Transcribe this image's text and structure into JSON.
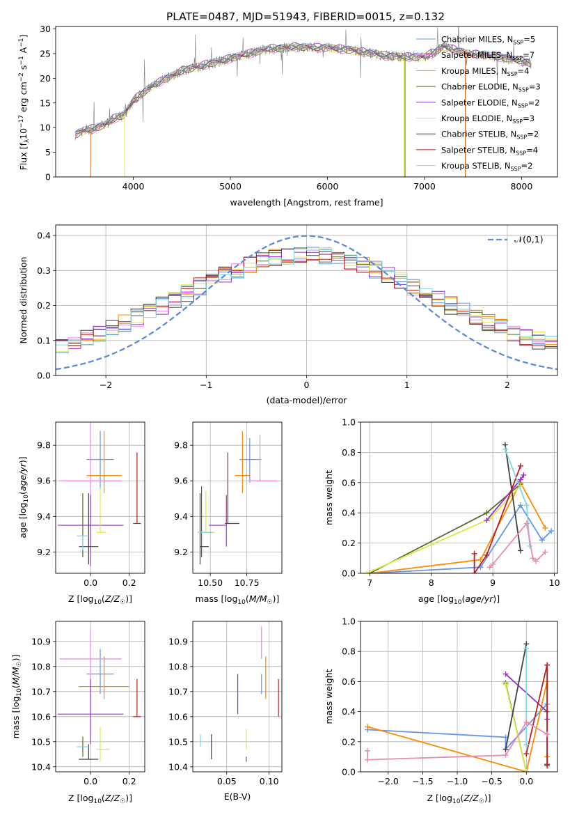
{
  "figure": {
    "title": "PLATE=0487, MJD=51943, FIBERID=0015, z=0.132"
  },
  "chart_data": [
    {
      "id": "spectrum",
      "type": "line",
      "xlabel": "wavelength [Angstrom, rest frame]",
      "ylabel": "Flux [f_λ10^-17 erg cm^-2 s^-1 A^-1]",
      "xlim": [
        3200,
        8370
      ],
      "ylim": [
        0,
        30.5
      ],
      "xticks": [
        4000,
        5000,
        6000,
        7000,
        8000
      ],
      "yticks": [
        0,
        5,
        10,
        15,
        20,
        25,
        30
      ],
      "grid": false,
      "legend": "top-right",
      "spectrum_points": {
        "x": [
          3400,
          3500,
          3600,
          3700,
          3800,
          3900,
          4000,
          4100,
          4200,
          4300,
          4400,
          4500,
          4600,
          4700,
          4800,
          4900,
          5000,
          5100,
          5200,
          5300,
          5400,
          5500,
          5600,
          5700,
          5800,
          5900,
          6000,
          6100,
          6200,
          6300,
          6400,
          6500,
          6600,
          6700,
          6800,
          6900,
          7000,
          7100,
          7200,
          7300,
          7400,
          7500,
          7600,
          7700,
          7800,
          7900,
          8000,
          8100
        ],
        "y": [
          8.5,
          9.5,
          9.8,
          10.5,
          11.8,
          12.5,
          15.5,
          17,
          18.5,
          19.5,
          20.5,
          21.5,
          22,
          22.5,
          23,
          23.5,
          24,
          24.5,
          25,
          25.5,
          26,
          26,
          26.3,
          26.3,
          26.3,
          26.2,
          26.2,
          26,
          25.8,
          25.5,
          25.2,
          25,
          24.5,
          24.5,
          24.3,
          24.3,
          24.4,
          25.2,
          26.5,
          25.8,
          25.2,
          24.8,
          24.8,
          24.5,
          24.2,
          23.8,
          23.5,
          23
        ]
      },
      "series": [
        {
          "name": "Chabrier MILES, N_SSP=5",
          "color": "#6495ed"
        },
        {
          "name": "Salpeter MILES, N_SSP=7",
          "color": "#ee82ee"
        },
        {
          "name": "Kroupa MILES, N_SSP=4",
          "color": "#ff8c00"
        },
        {
          "name": "Chabrier ELODIE, N_SSP=3",
          "color": "#556b2f"
        },
        {
          "name": "Salpeter ELODIE, N_SSP=2",
          "color": "#9932cc"
        },
        {
          "name": "Kroupa ELODIE, N_SSP=3",
          "color": "#dfe842"
        },
        {
          "name": "Chabrier STELIB, N_SSP=2",
          "color": "#404040"
        },
        {
          "name": "Salpeter STELIB, N_SSP=4",
          "color": "#b22222"
        },
        {
          "name": "Kroupa STELIB, N_SSP=2",
          "color": "#7fd8e8"
        }
      ]
    },
    {
      "id": "residuals",
      "type": "histogram",
      "xlabel": "(data-model)/error",
      "ylabel": "Normed distribution",
      "xlim": [
        -2.5,
        2.5
      ],
      "ylim": [
        0,
        0.43
      ],
      "xticks": [
        -2,
        -1,
        0,
        1,
        2
      ],
      "yticks": [
        0.0,
        0.1,
        0.2,
        0.3,
        0.4
      ],
      "grid": true,
      "legend": "top-right",
      "gauss_label": "𝒩(0,1)",
      "gauss_color": "#5b8bd9",
      "hist_colors": [
        "#6495ed",
        "#ee82ee",
        "#ff8c00",
        "#556b2f",
        "#9932cc",
        "#dfe842",
        "#404040",
        "#b22222",
        "#7fd8e8"
      ]
    },
    {
      "id": "age-vs-z",
      "type": "errorbar",
      "xlabel": "Z [log10(Z/Z☉)]",
      "ylabel": "age [log10(age/yr)]",
      "xlim": [
        -0.18,
        0.28
      ],
      "ylim": [
        9.08,
        9.93
      ],
      "xticks": [
        0.0,
        0.2
      ],
      "yticks": [
        9.2,
        9.4,
        9.6,
        9.8
      ],
      "grid": true,
      "points": [
        {
          "x": 0.05,
          "xerr": [
            0.07,
            0.07
          ],
          "y": 9.72,
          "yerr": [
            0.16,
            0.16
          ],
          "color": "#6495ed"
        },
        {
          "x": 0.0,
          "xerr": [
            0.16,
            0.16
          ],
          "y": 9.6,
          "yerr": [
            0.22,
            0.32
          ],
          "color": "#ee82ee"
        },
        {
          "x": 0.07,
          "xerr": [
            0.09,
            0.09
          ],
          "y": 9.63,
          "yerr": [
            0.1,
            0.25
          ],
          "color": "#ff8c00"
        },
        {
          "x": -0.04,
          "xerr": [
            0.0,
            0.0
          ],
          "y": 9.32,
          "yerr": [
            0.15,
            0.21
          ],
          "color": "#556b2f"
        },
        {
          "x": 0.0,
          "xerr": [
            0.17,
            0.17
          ],
          "y": 9.35,
          "yerr": [
            0.23,
            0.17
          ],
          "color": "#9932cc"
        },
        {
          "x": 0.05,
          "xerr": [
            0.02,
            0.03
          ],
          "y": 9.31,
          "yerr": [
            0.0,
            0.25
          ],
          "color": "#dfe842"
        },
        {
          "x": -0.01,
          "xerr": [
            0.05,
            0.05
          ],
          "y": 9.23,
          "yerr": [
            0.1,
            0.3
          ],
          "color": "#404040"
        },
        {
          "x": 0.24,
          "xerr": [
            0.02,
            0.02
          ],
          "y": 9.36,
          "yerr": [
            0.0,
            0.4
          ],
          "color": "#b22222"
        },
        {
          "x": -0.04,
          "xerr": [
            0.03,
            0.03
          ],
          "y": 9.29,
          "yerr": [
            0.08,
            0.0
          ],
          "color": "#7fd8e8"
        }
      ]
    },
    {
      "id": "age-vs-mass",
      "type": "errorbar",
      "xlabel": "mass [log10(M/M☉)]",
      "ylabel": "",
      "xlim": [
        10.38,
        10.99
      ],
      "ylim": [
        9.08,
        9.93
      ],
      "xticks": [
        10.5,
        10.75
      ],
      "yticks": [
        9.2,
        9.4,
        9.6,
        9.8
      ],
      "grid": true,
      "points": [
        {
          "x": 10.77,
          "xerr": [
            0.07,
            0.08
          ],
          "y": 9.72,
          "yerr": [
            0.13,
            0.12
          ],
          "color": "#6495ed"
        },
        {
          "x": 10.84,
          "xerr": [
            0.08,
            0.12
          ],
          "y": 9.6,
          "yerr": [
            0.0,
            0.26
          ],
          "color": "#ee82ee"
        },
        {
          "x": 10.72,
          "xerr": [
            0.05,
            0.05
          ],
          "y": 9.63,
          "yerr": [
            0.1,
            0.25
          ],
          "color": "#ff8c00"
        },
        {
          "x": 10.44,
          "xerr": [
            0.0,
            0.0
          ],
          "y": 9.32,
          "yerr": [
            0.15,
            0.25
          ],
          "color": "#556b2f"
        },
        {
          "x": 10.61,
          "xerr": [
            0.12,
            0.0
          ],
          "y": 9.35,
          "yerr": [
            0.12,
            0.17
          ],
          "color": "#9932cc"
        },
        {
          "x": 10.47,
          "xerr": [
            0.06,
            0.06
          ],
          "y": 9.31,
          "yerr": [
            0.0,
            0.23
          ],
          "color": "#dfe842"
        },
        {
          "x": 10.43,
          "xerr": [
            0.0,
            0.06
          ],
          "y": 9.23,
          "yerr": [
            0.1,
            0.3
          ],
          "color": "#404040"
        },
        {
          "x": 10.62,
          "xerr": [
            0.02,
            0.08
          ],
          "y": 9.36,
          "yerr": [
            0.0,
            0.4
          ],
          "color": "#b22222"
        },
        {
          "x": 10.47,
          "xerr": [
            0.05,
            0.05
          ],
          "y": 9.31,
          "yerr": [
            0.0,
            0.0
          ],
          "color": "#7fd8e8"
        }
      ]
    },
    {
      "id": "massweight-vs-age",
      "type": "line",
      "xlabel": "age [log10(age/yr)]",
      "ylabel": "mass weight",
      "xlim": [
        6.85,
        10.05
      ],
      "ylim": [
        0,
        1.0
      ],
      "xticks": [
        7,
        8,
        9,
        10
      ],
      "yticks": [
        0.0,
        0.2,
        0.4,
        0.6,
        0.8,
        1.0
      ],
      "grid": true,
      "series": [
        {
          "color": "#6495ed",
          "x": [
            7.0,
            8.8,
            9.45,
            9.8,
            9.95
          ],
          "y": [
            0.0,
            0.04,
            0.45,
            0.22,
            0.28
          ]
        },
        {
          "color": "#ff8c00",
          "x": [
            7.0,
            8.8,
            9.45,
            9.85
          ],
          "y": [
            0.0,
            0.09,
            0.6,
            0.3
          ]
        },
        {
          "color": "#556b2f",
          "x": [
            7.0,
            8.9,
            9.45
          ],
          "y": [
            0.0,
            0.4,
            0.59
          ]
        },
        {
          "color": "#dfe842",
          "x": [
            6.95,
            8.95,
            9.45
          ],
          "y": [
            0.0,
            0.36,
            0.58
          ]
        },
        {
          "color": "#9932cc",
          "x": [
            8.9,
            9.45,
            9.5
          ],
          "y": [
            0.35,
            0.62,
            0.65
          ]
        },
        {
          "color": "#404040",
          "x": [
            9.2,
            9.45
          ],
          "y": [
            0.85,
            0.15
          ]
        },
        {
          "color": "#b22222",
          "x": [
            8.7,
            8.7,
            8.9,
            9.45
          ],
          "y": [
            0.13,
            0.0,
            0.12,
            0.71
          ]
        },
        {
          "color": "#7fd8e8",
          "x": [
            9.2,
            9.55,
            9.6
          ],
          "y": [
            0.82,
            0.45,
            0.18
          ]
        },
        {
          "color": "#e88cb4",
          "x": [
            8.95,
            9.0,
            9.55,
            9.65,
            9.7,
            9.85
          ],
          "y": [
            0.04,
            0.06,
            0.33,
            0.1,
            0.08,
            0.14
          ]
        }
      ]
    },
    {
      "id": "mass-vs-z",
      "type": "errorbar",
      "xlabel": "Z [log10(Z/Z☉)]",
      "ylabel": "mass [log10(M/M☉)]",
      "xlim": [
        -0.18,
        0.28
      ],
      "ylim": [
        10.38,
        10.98
      ],
      "xticks": [
        0.0,
        0.2
      ],
      "yticks": [
        10.4,
        10.5,
        10.6,
        10.7,
        10.8,
        10.9
      ],
      "grid": true,
      "points": [
        {
          "x": 0.05,
          "xerr": [
            0.07,
            0.07
          ],
          "y": 10.77,
          "yerr": [
            0.08,
            0.1
          ],
          "color": "#6495ed"
        },
        {
          "x": 0.0,
          "xerr": [
            0.16,
            0.16
          ],
          "y": 10.83,
          "yerr": [
            0.1,
            0.12
          ],
          "color": "#ee82ee"
        },
        {
          "x": 0.07,
          "xerr": [
            0.13,
            0.13
          ],
          "y": 10.72,
          "yerr": [
            0.05,
            0.12
          ],
          "color": "#ff8c00"
        },
        {
          "x": -0.04,
          "xerr": [
            0.0,
            0.0
          ],
          "y": 10.44,
          "yerr": [
            0.0,
            0.08
          ],
          "color": "#556b2f"
        },
        {
          "x": 0.0,
          "xerr": [
            0.17,
            0.17
          ],
          "y": 10.61,
          "yerr": [
            0.12,
            0.14
          ],
          "color": "#9932cc"
        },
        {
          "x": 0.05,
          "xerr": [
            0.02,
            0.05
          ],
          "y": 10.47,
          "yerr": [
            0.05,
            0.09
          ],
          "color": "#dfe842"
        },
        {
          "x": -0.01,
          "xerr": [
            0.05,
            0.05
          ],
          "y": 10.43,
          "yerr": [
            0.0,
            0.06
          ],
          "color": "#404040"
        },
        {
          "x": 0.24,
          "xerr": [
            0.02,
            0.02
          ],
          "y": 10.6,
          "yerr": [
            0.0,
            0.15
          ],
          "color": "#b22222"
        },
        {
          "x": -0.04,
          "xerr": [
            0.03,
            0.03
          ],
          "y": 10.48,
          "yerr": [
            0.0,
            0.0
          ],
          "color": "#7fd8e8"
        }
      ]
    },
    {
      "id": "mass-vs-ebv",
      "type": "errorbar",
      "xlabel": "E(B-V)",
      "ylabel": "",
      "xlim": [
        0.01,
        0.115
      ],
      "ylim": [
        10.38,
        10.98
      ],
      "xticks": [
        0.05,
        0.1
      ],
      "yticks": [
        10.4,
        10.5,
        10.6,
        10.7,
        10.8,
        10.9
      ],
      "grid": true,
      "points": [
        {
          "x": 0.091,
          "xerr": [
            0.0,
            0.0
          ],
          "y": 10.77,
          "yerr": [
            0.08,
            0.0
          ],
          "color": "#6495ed"
        },
        {
          "x": 0.091,
          "xerr": [
            0.0,
            0.0
          ],
          "y": 10.83,
          "yerr": [
            0.0,
            0.13
          ],
          "color": "#ee82ee"
        },
        {
          "x": 0.096,
          "xerr": [
            0.0,
            0.0
          ],
          "y": 10.72,
          "yerr": [
            0.05,
            0.12
          ],
          "color": "#ff8c00"
        },
        {
          "x": 0.073,
          "xerr": [
            0.0,
            0.0
          ],
          "y": 10.44,
          "yerr": [
            0.02,
            0.0
          ],
          "color": "#556b2f"
        },
        {
          "x": 0.063,
          "xerr": [
            0.0,
            0.0
          ],
          "y": 10.61,
          "yerr": [
            0.0,
            0.16
          ],
          "color": "#9932cc"
        },
        {
          "x": 0.073,
          "xerr": [
            0.0,
            0.0
          ],
          "y": 10.47,
          "yerr": [
            0.0,
            0.08
          ],
          "color": "#dfe842"
        },
        {
          "x": 0.032,
          "xerr": [
            0.0,
            0.0
          ],
          "y": 10.43,
          "yerr": [
            0.0,
            0.1
          ],
          "color": "#404040"
        },
        {
          "x": 0.111,
          "xerr": [
            0.0,
            0.0
          ],
          "y": 10.6,
          "yerr": [
            0.0,
            0.15
          ],
          "color": "#b22222"
        },
        {
          "x": 0.019,
          "xerr": [
            0.0,
            0.0
          ],
          "y": 10.48,
          "yerr": [
            0.0,
            0.05
          ],
          "color": "#7fd8e8"
        }
      ]
    },
    {
      "id": "massweight-vs-z",
      "type": "line",
      "xlabel": "Z [log10(Z/Z☉)]",
      "ylabel": "mass weight",
      "xlim": [
        -2.4,
        0.45
      ],
      "ylim": [
        0,
        1.0
      ],
      "xticks": [
        -2.0,
        -1.5,
        -1.0,
        -0.5,
        0.0
      ],
      "yticks": [
        0.0,
        0.2,
        0.4,
        0.6,
        0.8,
        1.0
      ],
      "grid": true,
      "series": [
        {
          "color": "#6495ed",
          "x": [
            -2.3,
            -0.3,
            -0.3,
            0.3
          ],
          "y": [
            0.28,
            0.23,
            0.15,
            0.45
          ]
        },
        {
          "color": "#ff8c00",
          "x": [
            -2.3,
            0.0,
            0.3,
            0.3
          ],
          "y": [
            0.3,
            0.0,
            0.6,
            0.1
          ]
        },
        {
          "color": "#556b2f",
          "x": [
            -0.3,
            0.0
          ],
          "y": [
            0.59,
            0.0
          ]
        },
        {
          "color": "#dfe842",
          "x": [
            -0.3,
            0.0
          ],
          "y": [
            0.58,
            0.0
          ]
        },
        {
          "color": "#9932cc",
          "x": [
            -0.3,
            0.3,
            0.3
          ],
          "y": [
            0.65,
            0.4,
            0.35
          ]
        },
        {
          "color": "#404040",
          "x": [
            -0.3,
            0.0
          ],
          "y": [
            0.15,
            0.85
          ]
        },
        {
          "color": "#b22222",
          "x": [
            0.0,
            0.3,
            0.3,
            0.3
          ],
          "y": [
            0.12,
            0.71,
            0.05,
            0.04
          ]
        },
        {
          "color": "#7fd8e8",
          "x": [
            0.0,
            0.0
          ],
          "y": [
            0.82,
            0.18
          ]
        },
        {
          "color": "#e88cb4",
          "x": [
            -2.3,
            -2.3,
            -0.3,
            0.0,
            0.3
          ],
          "y": [
            0.14,
            0.08,
            0.11,
            0.33,
            0.25
          ]
        }
      ]
    }
  ]
}
